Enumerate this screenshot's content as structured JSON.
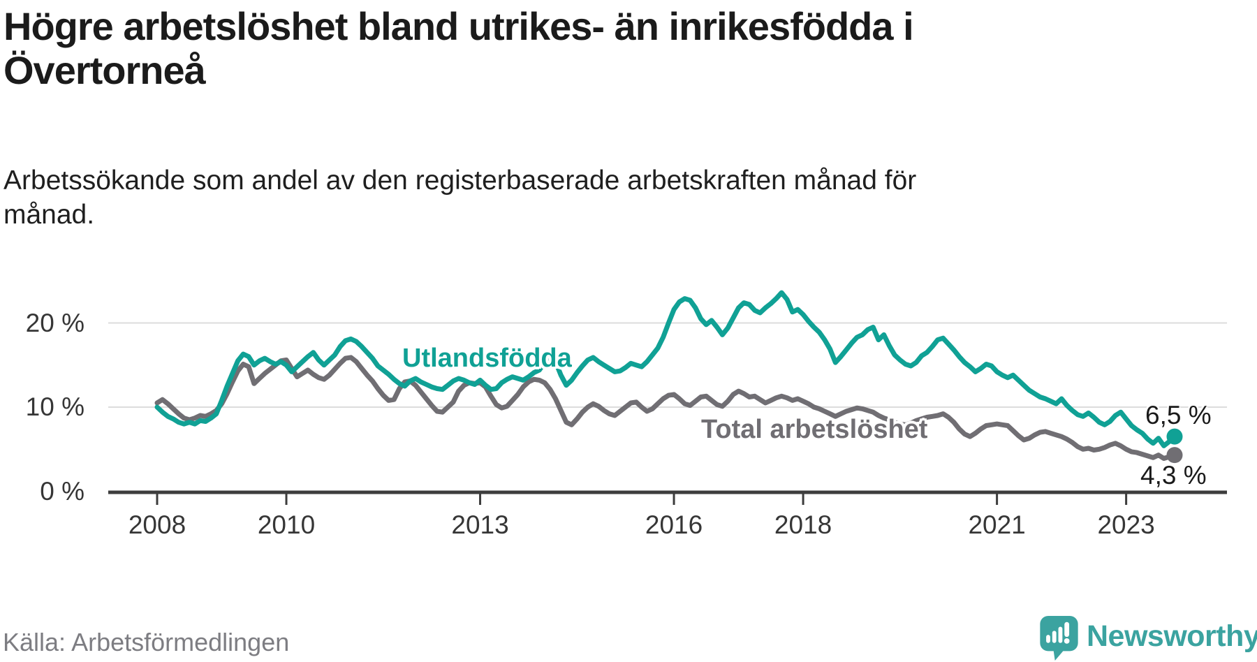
{
  "header": {
    "title_lines": [
      "Högre arbetslöshet bland utrikes- än inrikesfödda i",
      "Övertorneå"
    ],
    "subtitle_lines": [
      "Arbetssökande som andel av den registerbaserade arbetskraften månad för",
      "månad."
    ]
  },
  "chart_data": {
    "type": "line",
    "unit": "%",
    "x_range": [
      "2008-01",
      "2023-10"
    ],
    "grid": true,
    "legend_position": "inline-labels",
    "x_axis": {
      "ticks": [
        {
          "label": "2008",
          "month_index": 0
        },
        {
          "label": "2010",
          "month_index": 24
        },
        {
          "label": "2013",
          "month_index": 60
        },
        {
          "label": "2016",
          "month_index": 96
        },
        {
          "label": "2018",
          "month_index": 120
        },
        {
          "label": "2021",
          "month_index": 156
        },
        {
          "label": "2023",
          "month_index": 180
        }
      ]
    },
    "y_axis": {
      "range": [
        0,
        25
      ],
      "ticks": [
        {
          "value": 0,
          "label": "0 %"
        },
        {
          "value": 10,
          "label": "10 %"
        },
        {
          "value": 20,
          "label": "20 %"
        }
      ]
    },
    "series": [
      {
        "name": "Utlandsfödda",
        "color": "#10a195",
        "end_label": "6,5 %",
        "end_value": 6.5,
        "values": [
          10.0,
          9.4,
          8.9,
          8.6,
          8.2,
          8.0,
          8.2,
          8.0,
          8.4,
          8.3,
          8.7,
          9.2,
          10.8,
          12.5,
          14.0,
          15.5,
          16.3,
          16.0,
          15.0,
          15.5,
          15.8,
          15.4,
          15.1,
          15.4,
          15.0,
          14.2,
          14.8,
          15.4,
          16.0,
          16.5,
          15.6,
          15.0,
          15.6,
          16.2,
          17.2,
          17.9,
          18.1,
          17.8,
          17.2,
          16.5,
          15.8,
          14.9,
          14.4,
          13.9,
          13.3,
          12.8,
          12.5,
          13.1,
          13.4,
          13.0,
          12.7,
          12.4,
          12.2,
          12.1,
          12.6,
          13.1,
          13.4,
          13.2,
          12.9,
          12.7,
          13.2,
          12.6,
          12.1,
          12.2,
          12.9,
          13.3,
          13.6,
          13.4,
          13.2,
          13.6,
          14.1,
          14.4,
          15.3,
          16.2,
          15.4,
          13.8,
          12.6,
          13.2,
          14.1,
          14.9,
          15.6,
          15.9,
          15.4,
          15.0,
          14.6,
          14.2,
          14.3,
          14.7,
          15.2,
          15.0,
          14.8,
          15.4,
          16.2,
          17.0,
          18.3,
          20.0,
          21.6,
          22.5,
          22.9,
          22.7,
          21.8,
          20.5,
          19.8,
          20.3,
          19.5,
          18.6,
          19.4,
          20.6,
          21.8,
          22.4,
          22.2,
          21.5,
          21.2,
          21.8,
          22.3,
          22.9,
          23.6,
          22.8,
          21.3,
          21.6,
          21.0,
          20.2,
          19.5,
          18.9,
          18.0,
          16.9,
          15.3,
          16.0,
          16.8,
          17.6,
          18.3,
          18.6,
          19.2,
          19.5,
          18.0,
          18.6,
          17.3,
          16.2,
          15.6,
          15.1,
          14.9,
          15.3,
          16.1,
          16.5,
          17.2,
          18.0,
          18.2,
          17.5,
          16.8,
          16.0,
          15.3,
          14.8,
          14.2,
          14.6,
          15.1,
          14.9,
          14.2,
          13.8,
          13.5,
          13.8,
          13.2,
          12.6,
          12.0,
          11.6,
          11.2,
          11.0,
          10.7,
          10.4,
          11.0,
          10.2,
          9.6,
          9.1,
          8.9,
          9.3,
          8.8,
          8.2,
          7.9,
          8.3,
          9.0,
          9.4,
          8.6,
          7.8,
          7.3,
          6.9,
          6.2,
          5.7,
          6.3,
          5.4,
          5.9,
          6.5
        ]
      },
      {
        "name": "Total arbetslöshet",
        "color": "#706e73",
        "end_label": "4,3 %",
        "end_value": 4.3,
        "values": [
          10.5,
          10.9,
          10.4,
          9.8,
          9.2,
          8.7,
          8.5,
          8.7,
          9.0,
          8.9,
          9.2,
          9.6,
          10.4,
          11.6,
          13.0,
          14.3,
          15.1,
          14.8,
          12.8,
          13.4,
          14.0,
          14.5,
          15.0,
          15.5,
          15.6,
          14.6,
          13.6,
          14.0,
          14.4,
          13.9,
          13.5,
          13.3,
          13.8,
          14.5,
          15.2,
          15.8,
          15.9,
          15.4,
          14.6,
          13.8,
          13.1,
          12.2,
          11.4,
          10.8,
          10.9,
          12.2,
          13.0,
          13.1,
          12.6,
          11.8,
          11.0,
          10.2,
          9.5,
          9.4,
          10.0,
          10.6,
          11.9,
          12.6,
          12.9,
          12.8,
          12.9,
          12.4,
          11.3,
          10.3,
          9.9,
          10.1,
          10.8,
          11.5,
          12.4,
          13.0,
          13.3,
          13.2,
          12.9,
          12.1,
          11.0,
          9.6,
          8.2,
          7.9,
          8.6,
          9.4,
          10.0,
          10.4,
          10.1,
          9.6,
          9.2,
          9.0,
          9.5,
          10.0,
          10.5,
          10.6,
          10.0,
          9.5,
          9.8,
          10.4,
          11.0,
          11.4,
          11.5,
          11.0,
          10.4,
          10.2,
          10.7,
          11.2,
          11.3,
          10.8,
          10.3,
          10.1,
          10.7,
          11.5,
          11.9,
          11.6,
          11.2,
          11.3,
          10.9,
          10.5,
          10.8,
          11.1,
          11.3,
          11.1,
          10.8,
          11.0,
          10.7,
          10.4,
          10.0,
          9.8,
          9.5,
          9.2,
          8.9,
          9.2,
          9.5,
          9.7,
          9.9,
          9.8,
          9.6,
          9.4,
          9.0,
          8.7,
          8.5,
          8.2,
          8.0,
          7.9,
          8.1,
          8.4,
          8.6,
          8.8,
          8.9,
          9.0,
          9.2,
          8.8,
          8.2,
          7.4,
          6.8,
          6.5,
          6.9,
          7.4,
          7.8,
          7.9,
          8.0,
          7.9,
          7.8,
          7.2,
          6.6,
          6.1,
          6.3,
          6.7,
          7.0,
          7.1,
          6.9,
          6.7,
          6.5,
          6.2,
          5.8,
          5.3,
          5.0,
          5.1,
          4.9,
          5.0,
          5.2,
          5.5,
          5.7,
          5.4,
          5.0,
          4.7,
          4.6,
          4.4,
          4.2,
          4.0,
          4.3,
          3.9,
          4.1,
          4.3
        ]
      }
    ],
    "style": {
      "grid_color": "#dcdcdc",
      "axis_color": "#3d3d3d",
      "tick_label_color": "#363636",
      "end_label_color": "#1a1a1a"
    }
  },
  "footer": {
    "source": "Källa: Arbetsförmedlingen",
    "brand": "Newsworthy",
    "brand_color": "#3ba3a0",
    "logo_icon": "newsworthy-speech-bubble-chart-icon"
  }
}
